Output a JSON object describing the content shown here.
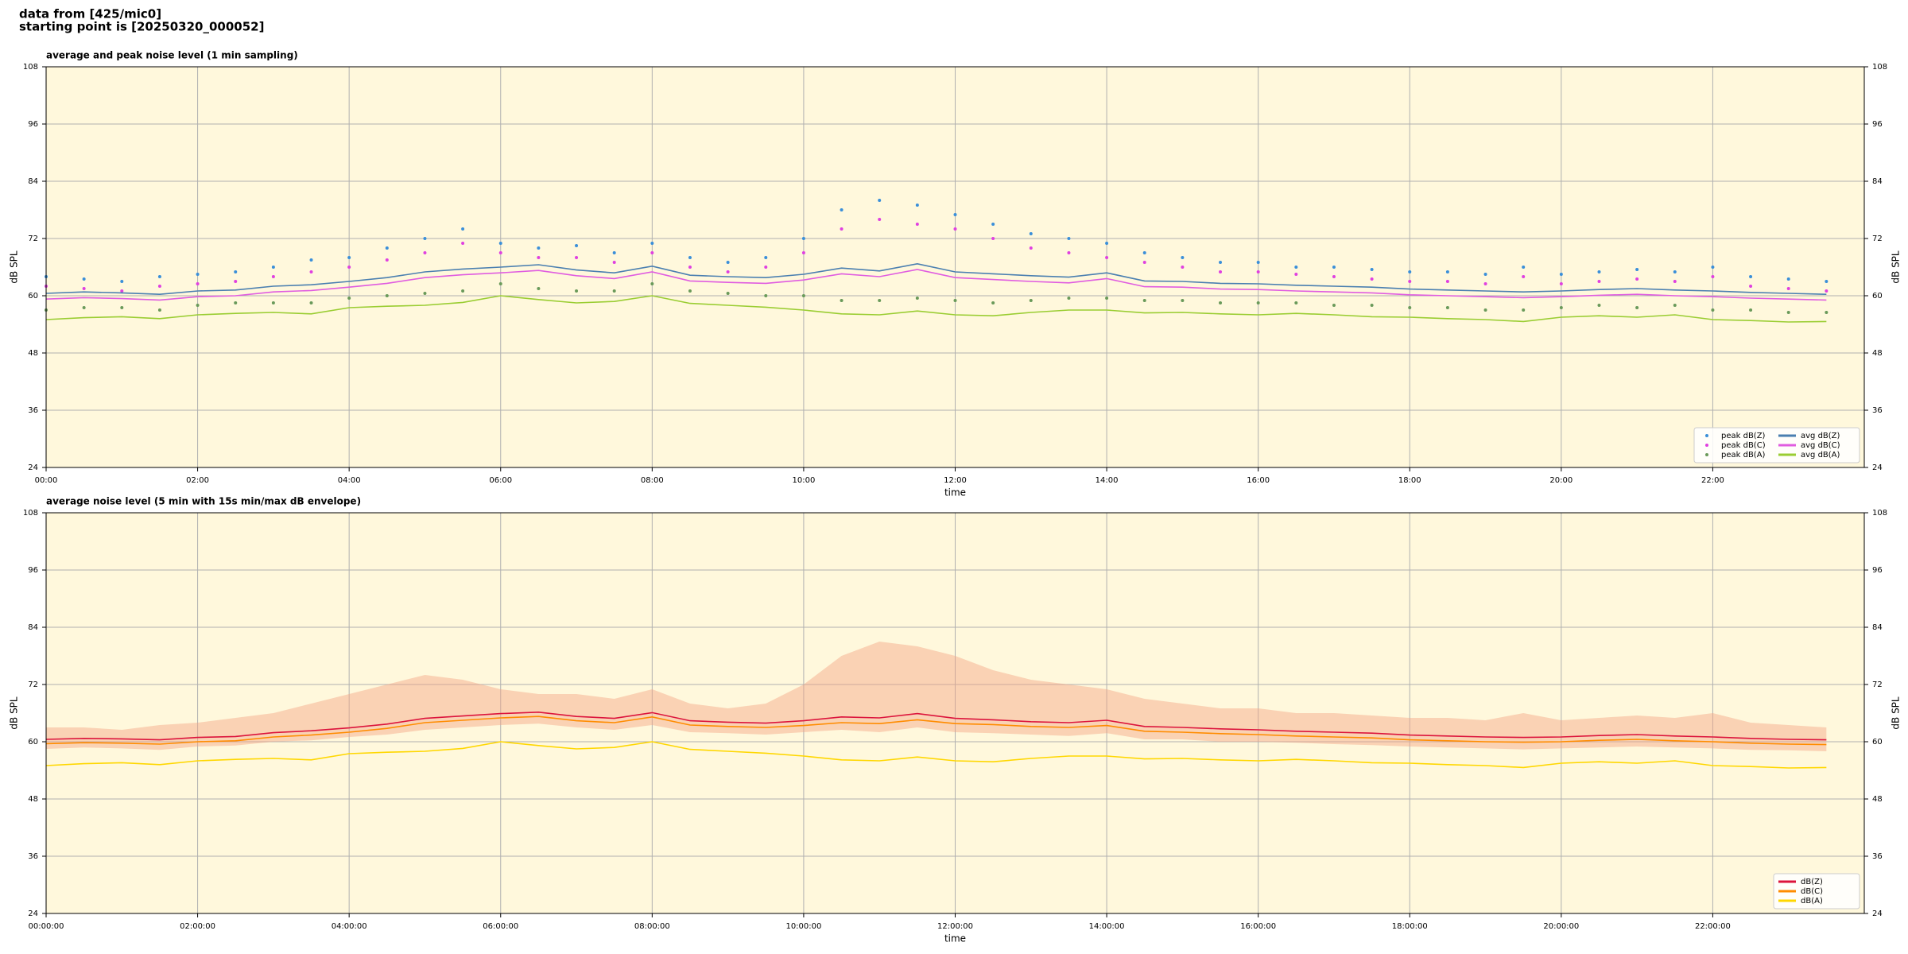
{
  "header": {
    "source": "data from [425/mic0]",
    "start": "starting point is [20250320_000052]"
  },
  "chart_data": [
    {
      "type": "line",
      "title": "average and peak noise level (1 min sampling)",
      "xlabel": "time",
      "ylabel": "dB SPL",
      "x": [
        0,
        0.5,
        1,
        1.5,
        2,
        2.5,
        3,
        3.5,
        4,
        4.5,
        5,
        5.5,
        6,
        6.5,
        7,
        7.5,
        8,
        8.5,
        9,
        9.5,
        10,
        10.5,
        11,
        11.5,
        12,
        12.5,
        13,
        13.5,
        14,
        14.5,
        15,
        15.5,
        16,
        16.5,
        17,
        17.5,
        18,
        18.5,
        19,
        19.5,
        20,
        20.5,
        21,
        21.5,
        22,
        22.5,
        23,
        23.5
      ],
      "xlim": [
        0,
        24
      ],
      "xticks": [
        {
          "value": 0,
          "label": "00:00"
        },
        {
          "value": 2,
          "label": "02:00"
        },
        {
          "value": 4,
          "label": "04:00"
        },
        {
          "value": 6,
          "label": "06:00"
        },
        {
          "value": 8,
          "label": "08:00"
        },
        {
          "value": 10,
          "label": "10:00"
        },
        {
          "value": 12,
          "label": "12:00"
        },
        {
          "value": 14,
          "label": "14:00"
        },
        {
          "value": 16,
          "label": "16:00"
        },
        {
          "value": 18,
          "label": "18:00"
        },
        {
          "value": 20,
          "label": "20:00"
        },
        {
          "value": 22,
          "label": "22:00"
        }
      ],
      "ylim": [
        24,
        108
      ],
      "yticks": [
        24,
        36,
        48,
        60,
        72,
        84,
        96,
        108
      ],
      "grid": true,
      "legend": "lower right",
      "legend_columns": 2,
      "series": [
        {
          "name": "peak dB(Z)",
          "kind": "scatter",
          "color": "#3a8fd9",
          "values": [
            64,
            63.5,
            63,
            64,
            64.5,
            65,
            66,
            67.5,
            68,
            70,
            72,
            74,
            71,
            70,
            70.5,
            69,
            71,
            68,
            67,
            68,
            72,
            78,
            80,
            79,
            77,
            75,
            73,
            72,
            71,
            69,
            68,
            67,
            67,
            66,
            66,
            65.5,
            65,
            65,
            64.5,
            66,
            64.5,
            65,
            65.5,
            65,
            66,
            64,
            63.5,
            63
          ]
        },
        {
          "name": "peak dB(C)",
          "kind": "scatter",
          "color": "#e040e0",
          "values": [
            62,
            61.5,
            61,
            62,
            62.5,
            63,
            64,
            65,
            66,
            67.5,
            69,
            71,
            69,
            68,
            68,
            67,
            69,
            66,
            65,
            66,
            69,
            74,
            76,
            75,
            74,
            72,
            70,
            69,
            68,
            67,
            66,
            65,
            65,
            64.5,
            64,
            63.5,
            63,
            63,
            62.5,
            64,
            62.5,
            63,
            63.5,
            63,
            64,
            62,
            61.5,
            61
          ]
        },
        {
          "name": "peak dB(A)",
          "kind": "scatter",
          "color": "#6a9a5a",
          "values": [
            57,
            57.5,
            57.5,
            57,
            58,
            58.5,
            58.5,
            58.5,
            59.5,
            60,
            60.5,
            61,
            62.5,
            61.5,
            61,
            61,
            62.5,
            61,
            60.5,
            60,
            60,
            59,
            59,
            59.5,
            59,
            58.5,
            59,
            59.5,
            59.5,
            59,
            59,
            58.5,
            58.5,
            58.5,
            58,
            58,
            57.5,
            57.5,
            57,
            57,
            57.5,
            58,
            57.5,
            58,
            57,
            57,
            56.5,
            56.5
          ]
        },
        {
          "name": "avg dB(Z)",
          "kind": "line",
          "color": "#4a7fb0",
          "values": [
            60.5,
            60.8,
            60.6,
            60.3,
            61,
            61.2,
            62,
            62.3,
            63,
            63.8,
            65,
            65.6,
            66,
            66.5,
            65.4,
            64.8,
            66.2,
            64.3,
            64,
            63.8,
            64.5,
            65.8,
            65.2,
            66.7,
            65,
            64.6,
            64.2,
            63.9,
            64.8,
            63.1,
            63,
            62.6,
            62.5,
            62.2,
            62,
            61.8,
            61.4,
            61.2,
            61,
            60.8,
            61,
            61.3,
            61.5,
            61.2,
            61,
            60.7,
            60.5,
            60.3
          ]
        },
        {
          "name": "avg dB(C)",
          "kind": "line",
          "color": "#e05ce0",
          "values": [
            59.3,
            59.6,
            59.4,
            59.1,
            59.8,
            60,
            60.8,
            61.1,
            61.8,
            62.6,
            63.8,
            64.4,
            64.8,
            65.3,
            64.2,
            63.6,
            65,
            63.1,
            62.8,
            62.6,
            63.3,
            64.6,
            64,
            65.5,
            63.8,
            63.4,
            63,
            62.7,
            63.6,
            61.9,
            61.8,
            61.4,
            61.3,
            61,
            60.8,
            60.6,
            60.2,
            60,
            59.8,
            59.6,
            59.8,
            60.1,
            60.3,
            60,
            59.8,
            59.5,
            59.3,
            59.1
          ]
        },
        {
          "name": "avg dB(A)",
          "kind": "line",
          "color": "#9acd32",
          "values": [
            55,
            55.4,
            55.6,
            55.2,
            56,
            56.3,
            56.5,
            56.2,
            57.5,
            57.8,
            58,
            58.6,
            60,
            59.2,
            58.5,
            58.8,
            60,
            58.4,
            58,
            57.6,
            57,
            56.2,
            56,
            56.8,
            56,
            55.8,
            56.5,
            57,
            57,
            56.4,
            56.5,
            56.2,
            56,
            56.3,
            56,
            55.6,
            55.5,
            55.2,
            55,
            54.6,
            55.5,
            55.8,
            55.5,
            56,
            55,
            54.8,
            54.5,
            54.6
          ]
        }
      ]
    },
    {
      "type": "line",
      "title": "average noise level (5 min with 15s min/max dB envelope)",
      "xlabel": "time",
      "ylabel": "dB SPL",
      "x": [
        0,
        0.5,
        1,
        1.5,
        2,
        2.5,
        3,
        3.5,
        4,
        4.5,
        5,
        5.5,
        6,
        6.5,
        7,
        7.5,
        8,
        8.5,
        9,
        9.5,
        10,
        10.5,
        11,
        11.5,
        12,
        12.5,
        13,
        13.5,
        14,
        14.5,
        15,
        15.5,
        16,
        16.5,
        17,
        17.5,
        18,
        18.5,
        19,
        19.5,
        20,
        20.5,
        21,
        21.5,
        22,
        22.5,
        23,
        23.5
      ],
      "xlim": [
        0,
        24
      ],
      "xticks": [
        {
          "value": 0,
          "label": "00:00:00"
        },
        {
          "value": 2,
          "label": "02:00:00"
        },
        {
          "value": 4,
          "label": "04:00:00"
        },
        {
          "value": 6,
          "label": "06:00:00"
        },
        {
          "value": 8,
          "label": "08:00:00"
        },
        {
          "value": 10,
          "label": "10:00:00"
        },
        {
          "value": 12,
          "label": "12:00:00"
        },
        {
          "value": 14,
          "label": "14:00:00"
        },
        {
          "value": 16,
          "label": "16:00:00"
        },
        {
          "value": 18,
          "label": "18:00:00"
        },
        {
          "value": 20,
          "label": "20:00:00"
        },
        {
          "value": 22,
          "label": "22:00:00"
        }
      ],
      "ylim": [
        24,
        108
      ],
      "yticks": [
        24,
        36,
        48,
        60,
        72,
        84,
        96,
        108
      ],
      "grid": true,
      "legend": "lower right",
      "legend_columns": 1,
      "envelope": {
        "color": "#f4a582",
        "upper": [
          63,
          63,
          62.5,
          63.5,
          64,
          65,
          66,
          68,
          70,
          72,
          74,
          73,
          71,
          70,
          70,
          69,
          71,
          68,
          67,
          68,
          72,
          78,
          81,
          80,
          78,
          75,
          73,
          72,
          71,
          69,
          68,
          67,
          67,
          66,
          66,
          65.5,
          65,
          65,
          64.5,
          66,
          64.5,
          65,
          65.5,
          65,
          66,
          64,
          63.5,
          63
        ],
        "lower": [
          58.5,
          58.8,
          58.6,
          58.3,
          59,
          59.2,
          60,
          60.3,
          61,
          61.5,
          62.5,
          63,
          63.5,
          63.8,
          63,
          62.5,
          63.5,
          62,
          61.8,
          61.5,
          62,
          62.5,
          62,
          63,
          62,
          61.8,
          61.5,
          61.2,
          61.8,
          60.5,
          60.5,
          60,
          60,
          59.8,
          59.5,
          59.3,
          59,
          58.8,
          58.6,
          58.4,
          58.6,
          58.8,
          59,
          58.8,
          58.6,
          58.3,
          58.2,
          58
        ]
      },
      "series": [
        {
          "name": "dB(Z)",
          "kind": "line",
          "color": "#dc143c",
          "values": [
            60.5,
            60.7,
            60.6,
            60.4,
            60.9,
            61.1,
            61.9,
            62.3,
            62.9,
            63.7,
            64.9,
            65.4,
            65.9,
            66.2,
            65.3,
            64.9,
            66.1,
            64.4,
            64.1,
            63.9,
            64.4,
            65.2,
            65,
            65.9,
            64.9,
            64.6,
            64.2,
            64,
            64.5,
            63.2,
            63,
            62.7,
            62.5,
            62.2,
            62,
            61.8,
            61.4,
            61.2,
            61,
            60.9,
            61,
            61.3,
            61.5,
            61.2,
            61,
            60.7,
            60.5,
            60.4
          ]
        },
        {
          "name": "dB(C)",
          "kind": "line",
          "color": "#ff8c00",
          "values": [
            59.6,
            59.8,
            59.7,
            59.5,
            60,
            60.2,
            61,
            61.4,
            62,
            62.8,
            64,
            64.5,
            65,
            65.3,
            64.4,
            64,
            65.2,
            63.5,
            63.2,
            63,
            63.4,
            64,
            63.8,
            64.6,
            63.8,
            63.6,
            63.2,
            63,
            63.4,
            62.2,
            62,
            61.7,
            61.5,
            61.2,
            61,
            60.8,
            60.4,
            60.2,
            60,
            59.9,
            60,
            60.3,
            60.5,
            60.2,
            60,
            59.7,
            59.5,
            59.4
          ]
        },
        {
          "name": "dB(A)",
          "kind": "line",
          "color": "#ffd700",
          "values": [
            55,
            55.4,
            55.6,
            55.2,
            56,
            56.3,
            56.5,
            56.2,
            57.5,
            57.8,
            58,
            58.6,
            60,
            59.2,
            58.5,
            58.8,
            60,
            58.4,
            58,
            57.6,
            57,
            56.2,
            56,
            56.8,
            56,
            55.8,
            56.5,
            57,
            57,
            56.4,
            56.5,
            56.2,
            56,
            56.3,
            56,
            55.6,
            55.5,
            55.2,
            55,
            54.6,
            55.5,
            55.8,
            55.5,
            56,
            55,
            54.8,
            54.5,
            54.6
          ]
        }
      ]
    }
  ]
}
